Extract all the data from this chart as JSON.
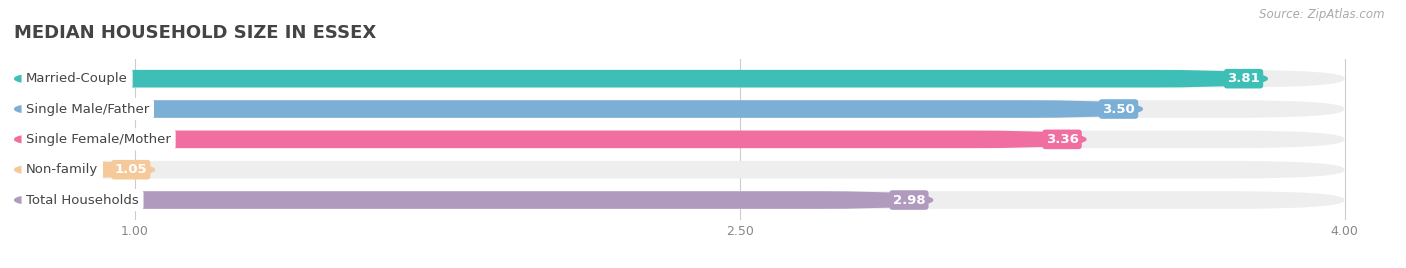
{
  "title": "MEDIAN HOUSEHOLD SIZE IN ESSEX",
  "source": "Source: ZipAtlas.com",
  "categories": [
    "Married-Couple",
    "Single Male/Father",
    "Single Female/Mother",
    "Non-family",
    "Total Households"
  ],
  "values": [
    3.81,
    3.5,
    3.36,
    1.05,
    2.98
  ],
  "bar_colors": [
    "#3dbfb8",
    "#7bafd6",
    "#f06fa0",
    "#f5c99a",
    "#b09abe"
  ],
  "xlim_min": 0.7,
  "xlim_max": 4.1,
  "xticks": [
    1.0,
    2.5,
    4.0
  ],
  "bar_height": 0.58,
  "value_fontsize": 9.5,
  "label_fontsize": 9.5,
  "title_fontsize": 13,
  "background_color": "#ffffff",
  "bar_bg_color": "#eeeeee"
}
